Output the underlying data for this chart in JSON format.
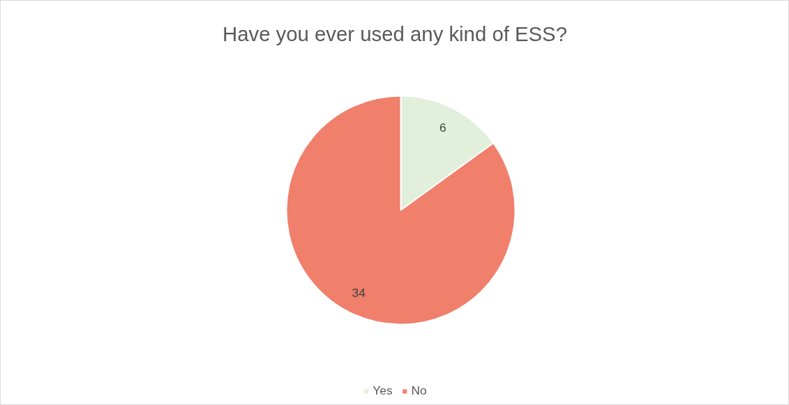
{
  "chart_data": {
    "type": "pie",
    "title": "Have you ever used any kind of ESS?",
    "categories": [
      "Yes",
      "No"
    ],
    "values": [
      6,
      34
    ],
    "colors": [
      "#e2efda",
      "#f07f6c"
    ],
    "data_labels": true,
    "legend": "bottom"
  }
}
